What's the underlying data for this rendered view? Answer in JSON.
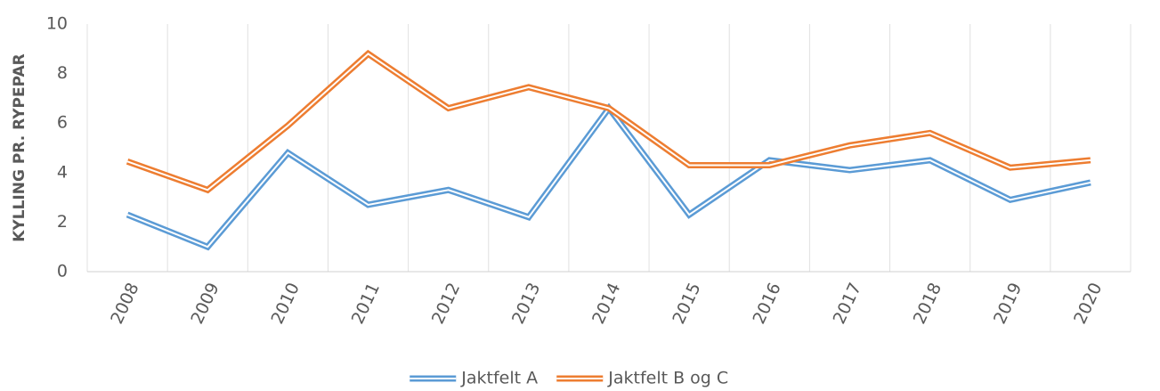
{
  "chart_data": {
    "type": "line",
    "y_label": "KYLLING PR. RYPEPAR",
    "categories": [
      "2008",
      "2009",
      "2010",
      "2011",
      "2012",
      "2013",
      "2014",
      "2015",
      "2016",
      "2017",
      "2018",
      "2019",
      "2020"
    ],
    "series": [
      {
        "name": "Jaktfelt A",
        "color": "#5b9bd5",
        "values": [
          2.3,
          1.0,
          4.8,
          2.7,
          3.3,
          2.2,
          6.6,
          2.3,
          4.5,
          4.1,
          4.5,
          2.9,
          3.6
        ]
      },
      {
        "name": "Jaktfelt B og C",
        "color": "#ed7d31",
        "values": [
          4.45,
          3.3,
          5.9,
          8.8,
          6.6,
          7.45,
          6.6,
          4.3,
          4.3,
          5.1,
          5.6,
          4.2,
          4.5
        ]
      }
    ],
    "ylim": [
      0,
      10
    ],
    "yticks": [
      0,
      2,
      4,
      6,
      8,
      10
    ],
    "grid": "vertical",
    "legend": "bottom"
  }
}
